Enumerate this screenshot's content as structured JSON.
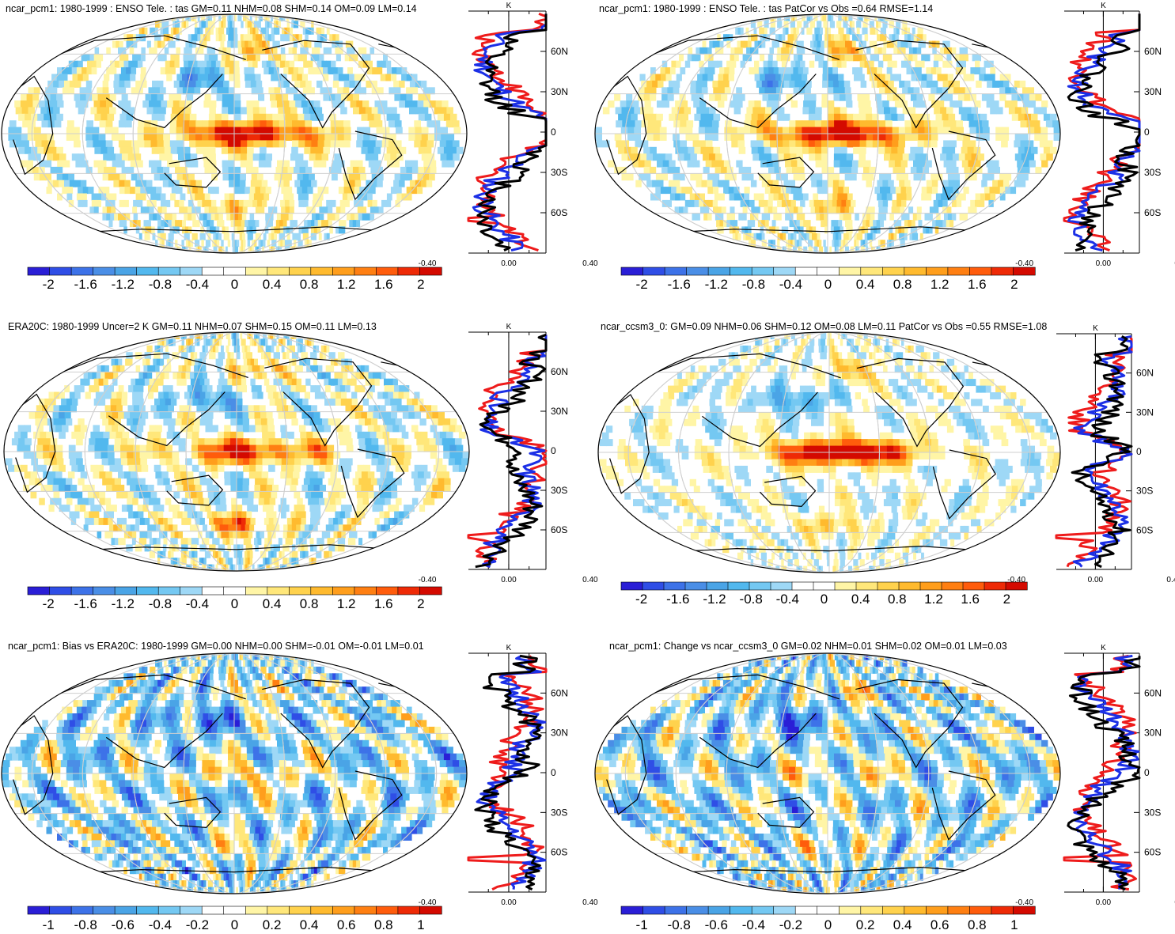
{
  "palette": {
    "neg": [
      "#2a1ed6",
      "#2f4ee6",
      "#3d72e8",
      "#4a8ee6",
      "#4aa4e6",
      "#52b8ee",
      "#74c8f2",
      "#9ed8f6"
    ],
    "pos": [
      "#fff5a6",
      "#ffe77a",
      "#ffd24d",
      "#ffba2e",
      "#ff9e1c",
      "#ff7f12",
      "#ff5c0c",
      "#ee2a06",
      "#d40a00"
    ],
    "obs_line": "#ee1b1b",
    "model_line": "#1b2fe6",
    "ref_line": "#000000",
    "grid": "#cfcfcf",
    "land": "#000000"
  },
  "units": "K",
  "profile_lat_labels": [
    "60N",
    "30N",
    "0",
    "30S",
    "60S"
  ],
  "profile_x_labels": [
    "-0.40",
    "0.00",
    "0.40"
  ],
  "panels": [
    {
      "id": "p1",
      "title": "ncar_pcm1: 1980-1999 : ENSO Tele. : tas GM=0.11 NHM=0.08 SHM=0.14 OM=0.09 LM=0.14",
      "colorbar_labels": [
        "-2",
        "-1.6",
        "-1.2",
        "-0.8",
        "-0.4",
        "0",
        "0.4",
        "0.8",
        "1.2",
        "1.6",
        "2"
      ],
      "seed": 1,
      "ninoAmp": 1.1,
      "noise": 0.55
    },
    {
      "id": "p2",
      "title": "ncar_pcm1: 1980-1999 : ENSO Tele. : tas PatCor vs Obs =0.64 RMSE=1.14",
      "colorbar_labels": [
        "-2",
        "-1.6",
        "-1.2",
        "-0.8",
        "-0.4",
        "0",
        "0.4",
        "0.8",
        "1.2",
        "1.6",
        "2"
      ],
      "seed": 2,
      "ninoAmp": 1.1,
      "noise": 0.55
    },
    {
      "id": "p3",
      "title": "ERA20C: 1980-1999 Uncer=2 K GM=0.11 NHM=0.07 SHM=0.15 OM=0.11 LM=0.13",
      "colorbar_labels": [
        "-2",
        "-1.6",
        "-1.2",
        "-0.8",
        "-0.4",
        "0",
        "0.4",
        "0.8",
        "1.2",
        "1.6",
        "2"
      ],
      "seed": 3,
      "ninoAmp": 0.9,
      "noise": 0.6
    },
    {
      "id": "p4",
      "title": "ncar_ccsm3_0: GM=0.09 NHM=0.06 SHM=0.12 OM=0.08 LM=0.11 PatCor vs Obs =0.55 RMSE=1.08",
      "colorbar_labels": [
        "-2",
        "-1.6",
        "-1.2",
        "-0.8",
        "-0.4",
        "0",
        "0.4",
        "0.8",
        "1.2",
        "1.6",
        "2"
      ],
      "seed": 4,
      "ninoAmp": 1.3,
      "noise": 0.4
    },
    {
      "id": "p5",
      "title": "ncar_pcm1: Bias vs ERA20C: 1980-1999 GM=0.00 NHM=0.00 SHM=-0.01 OM=-0.01 LM=0.01",
      "colorbar_labels": [
        "-1",
        "-0.8",
        "-0.6",
        "-0.4",
        "-0.2",
        "0",
        "0.2",
        "0.4",
        "0.6",
        "0.8",
        "1"
      ],
      "seed": 5,
      "ninoAmp": 0.4,
      "noise": 0.95
    },
    {
      "id": "p6",
      "title": "ncar_pcm1: Change vs ncar_ccsm3_0 GM=0.02 NHM=0.01 SHM=0.02 OM=0.01 LM=0.03",
      "colorbar_labels": [
        "-1",
        "-0.8",
        "-0.6",
        "-0.4",
        "-0.2",
        "0",
        "0.2",
        "0.4",
        "0.6",
        "0.8",
        "1"
      ],
      "seed": 6,
      "ninoAmp": 0.3,
      "noise": 0.95
    }
  ]
}
